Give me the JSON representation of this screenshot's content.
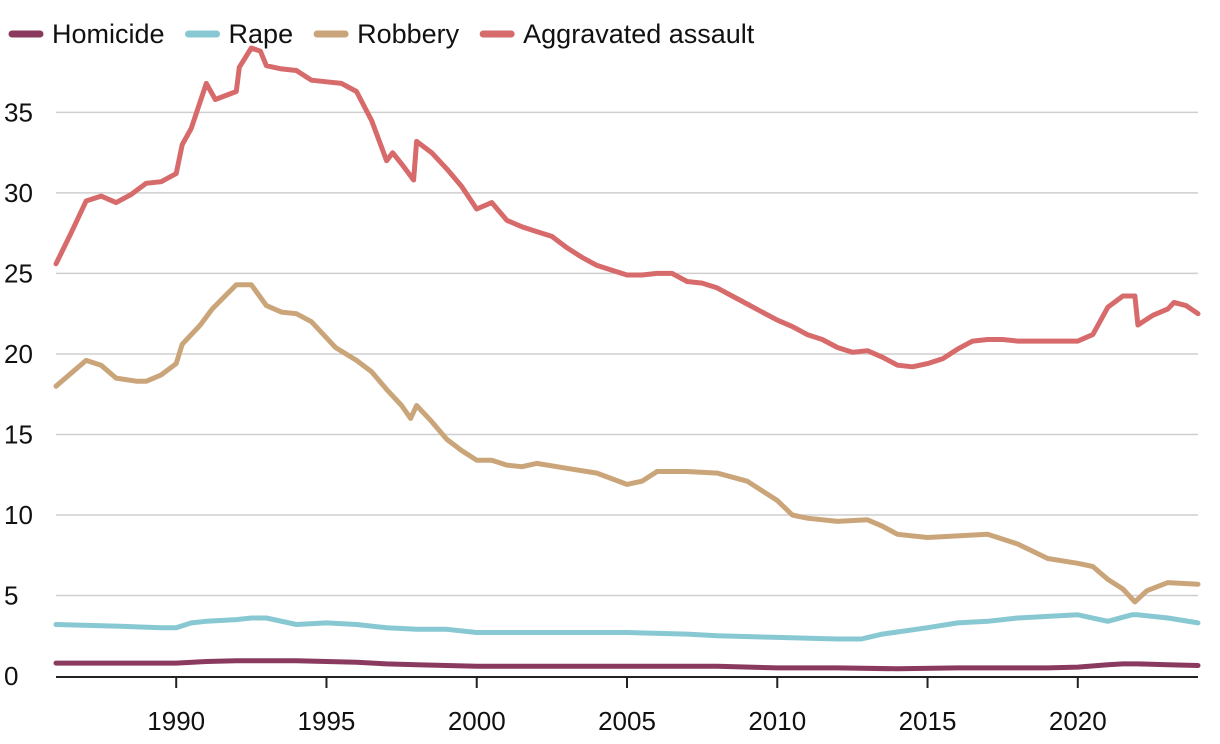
{
  "chart_data": {
    "type": "line",
    "title": "",
    "xlabel": "",
    "ylabel": "",
    "xlim": [
      1986,
      2024
    ],
    "ylim": [
      0,
      39
    ],
    "grid": true,
    "legend_position": "top-left",
    "x_ticks": [
      1990,
      1995,
      2000,
      2005,
      2010,
      2015,
      2020
    ],
    "y_ticks": [
      0,
      5,
      10,
      15,
      20,
      25,
      30,
      35
    ],
    "series": [
      {
        "name": "Homicide",
        "color": "#8a3a5e",
        "points": [
          [
            1986,
            0.8
          ],
          [
            1988,
            0.8
          ],
          [
            1990,
            0.8
          ],
          [
            1991,
            0.9
          ],
          [
            1992,
            0.95
          ],
          [
            1993,
            0.95
          ],
          [
            1994,
            0.95
          ],
          [
            1995,
            0.9
          ],
          [
            1996,
            0.85
          ],
          [
            1997,
            0.75
          ],
          [
            1998,
            0.7
          ],
          [
            2000,
            0.6
          ],
          [
            2005,
            0.6
          ],
          [
            2008,
            0.6
          ],
          [
            2010,
            0.5
          ],
          [
            2012,
            0.5
          ],
          [
            2014,
            0.45
          ],
          [
            2016,
            0.5
          ],
          [
            2019,
            0.5
          ],
          [
            2020,
            0.55
          ],
          [
            2021,
            0.7
          ],
          [
            2021.5,
            0.75
          ],
          [
            2022,
            0.75
          ],
          [
            2023,
            0.7
          ],
          [
            2024,
            0.65
          ]
        ]
      },
      {
        "name": "Rape",
        "color": "#88c8d2",
        "points": [
          [
            1986,
            3.2
          ],
          [
            1988,
            3.1
          ],
          [
            1989.5,
            3.0
          ],
          [
            1990,
            3.0
          ],
          [
            1990.5,
            3.3
          ],
          [
            1991,
            3.4
          ],
          [
            1992,
            3.5
          ],
          [
            1992.5,
            3.6
          ],
          [
            1993,
            3.6
          ],
          [
            1994,
            3.2
          ],
          [
            1995,
            3.3
          ],
          [
            1996,
            3.2
          ],
          [
            1997,
            3.0
          ],
          [
            1998,
            2.9
          ],
          [
            1999,
            2.9
          ],
          [
            2000,
            2.7
          ],
          [
            2001,
            2.7
          ],
          [
            2003,
            2.7
          ],
          [
            2005,
            2.7
          ],
          [
            2007,
            2.6
          ],
          [
            2008,
            2.5
          ],
          [
            2010,
            2.4
          ],
          [
            2012,
            2.3
          ],
          [
            2012.8,
            2.3
          ],
          [
            2013.5,
            2.6
          ],
          [
            2015,
            3.0
          ],
          [
            2016,
            3.3
          ],
          [
            2017,
            3.4
          ],
          [
            2018,
            3.6
          ],
          [
            2019,
            3.7
          ],
          [
            2020,
            3.8
          ],
          [
            2021,
            3.4
          ],
          [
            2021.8,
            3.8
          ],
          [
            2022,
            3.8
          ],
          [
            2023,
            3.6
          ],
          [
            2024,
            3.3
          ]
        ]
      },
      {
        "name": "Robbery",
        "color": "#cba57a",
        "points": [
          [
            1986,
            18.0
          ],
          [
            1986.5,
            18.8
          ],
          [
            1987,
            19.6
          ],
          [
            1987.5,
            19.3
          ],
          [
            1988,
            18.5
          ],
          [
            1988.7,
            18.3
          ],
          [
            1989,
            18.3
          ],
          [
            1989.5,
            18.7
          ],
          [
            1990,
            19.4
          ],
          [
            1990.2,
            20.6
          ],
          [
            1990.8,
            21.8
          ],
          [
            1991.2,
            22.8
          ],
          [
            1992,
            24.3
          ],
          [
            1992.5,
            24.3
          ],
          [
            1993,
            23.0
          ],
          [
            1993.5,
            22.6
          ],
          [
            1994,
            22.5
          ],
          [
            1994.5,
            22.0
          ],
          [
            1995,
            21.0
          ],
          [
            1995.3,
            20.4
          ],
          [
            1996,
            19.6
          ],
          [
            1996.5,
            18.9
          ],
          [
            1997,
            17.8
          ],
          [
            1997.5,
            16.8
          ],
          [
            1997.8,
            16.0
          ],
          [
            1998,
            16.8
          ],
          [
            1998.5,
            15.8
          ],
          [
            1999,
            14.7
          ],
          [
            1999.5,
            14.0
          ],
          [
            2000,
            13.4
          ],
          [
            2000.5,
            13.4
          ],
          [
            2001,
            13.1
          ],
          [
            2001.5,
            13.0
          ],
          [
            2002,
            13.2
          ],
          [
            2003,
            12.9
          ],
          [
            2004,
            12.6
          ],
          [
            2005,
            11.9
          ],
          [
            2005.5,
            12.1
          ],
          [
            2006,
            12.7
          ],
          [
            2007,
            12.7
          ],
          [
            2008,
            12.6
          ],
          [
            2009,
            12.1
          ],
          [
            2009.5,
            11.5
          ],
          [
            2010,
            10.9
          ],
          [
            2010.5,
            10.0
          ],
          [
            2011,
            9.8
          ],
          [
            2012,
            9.6
          ],
          [
            2013,
            9.7
          ],
          [
            2013.5,
            9.3
          ],
          [
            2014,
            8.8
          ],
          [
            2015,
            8.6
          ],
          [
            2016,
            8.7
          ],
          [
            2017,
            8.8
          ],
          [
            2018,
            8.2
          ],
          [
            2019,
            7.3
          ],
          [
            2020,
            7.0
          ],
          [
            2020.5,
            6.8
          ],
          [
            2021,
            6.0
          ],
          [
            2021.5,
            5.4
          ],
          [
            2021.9,
            4.6
          ],
          [
            2022.3,
            5.3
          ],
          [
            2023,
            5.8
          ],
          [
            2024,
            5.7
          ]
        ]
      },
      {
        "name": "Aggravated assault",
        "color": "#d76a6a",
        "points": [
          [
            1986,
            25.6
          ],
          [
            1986.5,
            27.5
          ],
          [
            1987,
            29.5
          ],
          [
            1987.5,
            29.8
          ],
          [
            1988,
            29.4
          ],
          [
            1988.5,
            29.9
          ],
          [
            1989,
            30.6
          ],
          [
            1989.5,
            30.7
          ],
          [
            1990,
            31.2
          ],
          [
            1990.2,
            33.0
          ],
          [
            1990.5,
            34.0
          ],
          [
            1991,
            36.8
          ],
          [
            1991.3,
            35.8
          ],
          [
            1992,
            36.3
          ],
          [
            1992.1,
            37.8
          ],
          [
            1992.5,
            39.0
          ],
          [
            1992.8,
            38.8
          ],
          [
            1993,
            37.9
          ],
          [
            1993.5,
            37.7
          ],
          [
            1994,
            37.6
          ],
          [
            1994.5,
            37.0
          ],
          [
            1995,
            36.9
          ],
          [
            1995.5,
            36.8
          ],
          [
            1996,
            36.3
          ],
          [
            1996.5,
            34.5
          ],
          [
            1997,
            32.0
          ],
          [
            1997.2,
            32.5
          ],
          [
            1997.5,
            31.8
          ],
          [
            1997.9,
            30.8
          ],
          [
            1998,
            33.2
          ],
          [
            1998.5,
            32.5
          ],
          [
            1999,
            31.5
          ],
          [
            1999.5,
            30.4
          ],
          [
            2000,
            29.0
          ],
          [
            2000.5,
            29.4
          ],
          [
            2001,
            28.3
          ],
          [
            2001.5,
            27.9
          ],
          [
            2002,
            27.6
          ],
          [
            2002.5,
            27.3
          ],
          [
            2003,
            26.6
          ],
          [
            2003.5,
            26.0
          ],
          [
            2004,
            25.5
          ],
          [
            2004.5,
            25.2
          ],
          [
            2005,
            24.9
          ],
          [
            2005.5,
            24.9
          ],
          [
            2006,
            25.0
          ],
          [
            2006.5,
            25.0
          ],
          [
            2007,
            24.5
          ],
          [
            2007.5,
            24.4
          ],
          [
            2008,
            24.1
          ],
          [
            2008.5,
            23.6
          ],
          [
            2009,
            23.1
          ],
          [
            2009.5,
            22.6
          ],
          [
            2010,
            22.1
          ],
          [
            2010.5,
            21.7
          ],
          [
            2011,
            21.2
          ],
          [
            2011.5,
            20.9
          ],
          [
            2012,
            20.4
          ],
          [
            2012.5,
            20.1
          ],
          [
            2013,
            20.2
          ],
          [
            2013.5,
            19.8
          ],
          [
            2014,
            19.3
          ],
          [
            2014.5,
            19.2
          ],
          [
            2015,
            19.4
          ],
          [
            2015.5,
            19.7
          ],
          [
            2016,
            20.3
          ],
          [
            2016.5,
            20.8
          ],
          [
            2017,
            20.9
          ],
          [
            2017.5,
            20.9
          ],
          [
            2018,
            20.8
          ],
          [
            2019,
            20.8
          ],
          [
            2020,
            20.8
          ],
          [
            2020.5,
            21.2
          ],
          [
            2021,
            22.9
          ],
          [
            2021.5,
            23.6
          ],
          [
            2021.9,
            23.6
          ],
          [
            2022,
            21.8
          ],
          [
            2022.5,
            22.4
          ],
          [
            2023,
            22.8
          ],
          [
            2023.2,
            23.2
          ],
          [
            2023.6,
            23.0
          ],
          [
            2024,
            22.5
          ]
        ]
      }
    ]
  }
}
